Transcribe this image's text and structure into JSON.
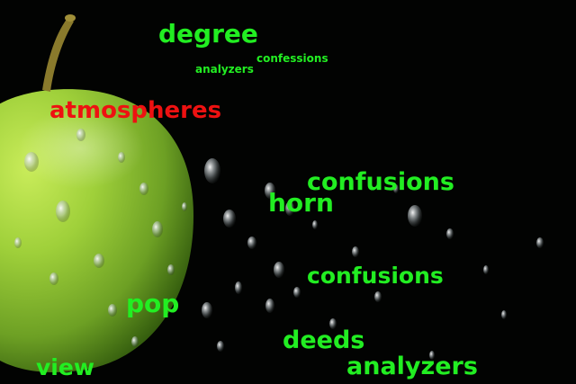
{
  "scene": {
    "subject_icon": "apple-icon",
    "colors": {
      "background": "#020302",
      "apple_light": "#b8e04a",
      "apple_mid": "#7fb52a",
      "apple_dark": "#2f5a0c",
      "stem": "#8a7a2c",
      "droplet": "#dfe6ea"
    }
  },
  "words": [
    {
      "text": "degree",
      "color": "#22ee22"
    },
    {
      "text": "confessions",
      "color": "#22ee22"
    },
    {
      "text": "analyzers",
      "color": "#22ee22"
    },
    {
      "text": "atmospheres",
      "color": "#ee1111"
    },
    {
      "text": "confusions",
      "color": "#22ee22"
    },
    {
      "text": "horn",
      "color": "#22ee22"
    },
    {
      "text": "confusions",
      "color": "#22ee22"
    },
    {
      "text": "pop",
      "color": "#22ee22"
    },
    {
      "text": "deeds",
      "color": "#22ee22"
    },
    {
      "text": "view",
      "color": "#22ee22"
    },
    {
      "text": "analyzers",
      "color": "#22ee22"
    }
  ]
}
